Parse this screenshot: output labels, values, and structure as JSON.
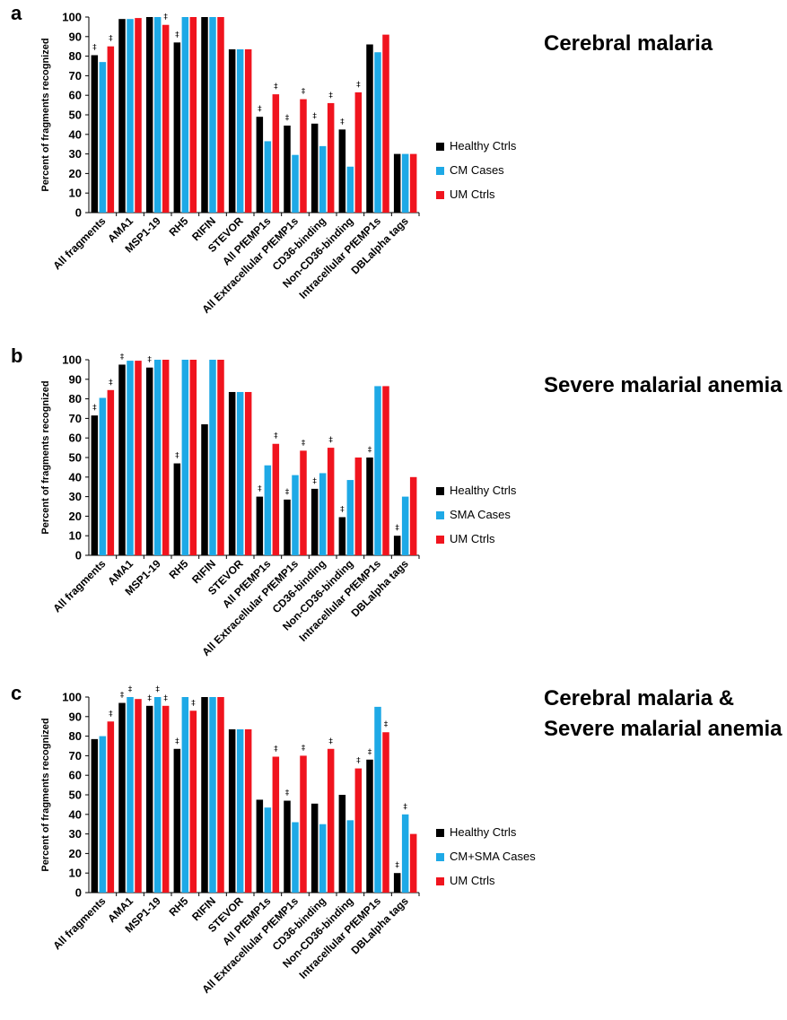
{
  "figure": {
    "colors": {
      "healthy": "#000000",
      "cases": "#1EA9E6",
      "um": "#F0141E",
      "axis": "#000000"
    },
    "categories": [
      "All fragments",
      "AMA1",
      "MSP1-19",
      "RH5",
      "RIFIN",
      "STEVOR",
      "All PfEMP1s",
      "All Extracellular PfEMP1s",
      "CD36-binding",
      "Non-CD36-binding",
      "Intracellular PfEMP1s",
      "DBLalpha tags"
    ],
    "ylabel": "Percent of fragments recognized",
    "significance_marker": "‡",
    "yticks": [
      "0",
      "10",
      "20",
      "30",
      "40",
      "50",
      "60",
      "70",
      "80",
      "90",
      "100"
    ]
  },
  "chart_data": [
    {
      "type": "bar",
      "panel": "a",
      "title": "Cerebral malaria",
      "ylabel": "Percent of fragments recognized",
      "ylim": [
        0,
        100
      ],
      "grid": false,
      "legend_position": "right",
      "categories": [
        "All fragments",
        "AMA1",
        "MSP1-19",
        "RH5",
        "RIFIN",
        "STEVOR",
        "All PfEMP1s",
        "All Extracellular PfEMP1s",
        "CD36-binding",
        "Non-CD36-binding",
        "Intracellular PfEMP1s",
        "DBLalpha tags"
      ],
      "series": [
        {
          "name": "Healthy Ctrls",
          "values": [
            80.5,
            99,
            100,
            87,
            100,
            83.5,
            49,
            44.5,
            45.5,
            42.5,
            86,
            30
          ],
          "marked": [
            1,
            0,
            0,
            1,
            0,
            0,
            1,
            1,
            1,
            1,
            0,
            0
          ]
        },
        {
          "name": "CM Cases",
          "values": [
            77,
            99,
            100,
            100,
            100,
            83.5,
            36.5,
            29.5,
            34,
            23.5,
            82,
            30
          ],
          "marked": [
            0,
            0,
            0,
            0,
            0,
            0,
            0,
            0,
            0,
            0,
            0,
            0
          ]
        },
        {
          "name": "UM Ctrls",
          "values": [
            85,
            99.5,
            96,
            100,
            100,
            83.5,
            60.5,
            58,
            56,
            61.5,
            91,
            30
          ],
          "marked": [
            1,
            0,
            1,
            0,
            0,
            0,
            1,
            1,
            1,
            1,
            0,
            0
          ]
        }
      ]
    },
    {
      "type": "bar",
      "panel": "b",
      "title": "Severe malarial anemia",
      "ylabel": "Percent of fragments recognized",
      "ylim": [
        0,
        100
      ],
      "grid": false,
      "legend_position": "right",
      "categories": [
        "All fragments",
        "AMA1",
        "MSP1-19",
        "RH5",
        "RIFIN",
        "STEVOR",
        "All PfEMP1s",
        "All Extracellular PfEMP1s",
        "CD36-binding",
        "Non-CD36-binding",
        "Intracellular PfEMP1s",
        "DBLalpha tags"
      ],
      "series": [
        {
          "name": "Healthy Ctrls",
          "values": [
            71.5,
            97.5,
            96,
            47,
            67,
            83.5,
            30,
            28.5,
            34,
            19.5,
            50,
            10
          ],
          "marked": [
            1,
            1,
            1,
            1,
            0,
            0,
            1,
            1,
            1,
            1,
            1,
            1
          ]
        },
        {
          "name": "SMA Cases",
          "values": [
            80.5,
            99.5,
            100,
            100,
            100,
            83.5,
            46,
            41,
            42,
            38.5,
            86.5,
            30
          ],
          "marked": [
            0,
            0,
            0,
            0,
            0,
            0,
            0,
            0,
            0,
            0,
            0,
            0
          ]
        },
        {
          "name": "UM Ctrls",
          "values": [
            84.5,
            99.5,
            100,
            100,
            100,
            83.5,
            57,
            53.5,
            55,
            50,
            86.5,
            40
          ],
          "marked": [
            1,
            0,
            0,
            0,
            0,
            0,
            1,
            1,
            1,
            0,
            0,
            0
          ]
        }
      ]
    },
    {
      "type": "bar",
      "panel": "c",
      "title": "Cerebral malaria & Severe malarial anemia",
      "title_lines": [
        "Cerebral malaria &",
        "Severe malarial anemia"
      ],
      "ylabel": "Percent of fragments recognized",
      "ylim": [
        0,
        100
      ],
      "grid": false,
      "legend_position": "right",
      "categories": [
        "All fragments",
        "AMA1",
        "MSP1-19",
        "RH5",
        "RIFIN",
        "STEVOR",
        "All PfEMP1s",
        "All Extracellular PfEMP1s",
        "CD36-binding",
        "Non-CD36-binding",
        "Intracellular PfEMP1s",
        "DBLalpha tags"
      ],
      "series": [
        {
          "name": "Healthy Ctrls",
          "values": [
            78.5,
            97,
            95.5,
            73.5,
            100,
            83.5,
            47.5,
            47,
            45.5,
            50,
            68,
            10
          ],
          "marked": [
            0,
            1,
            1,
            1,
            0,
            0,
            0,
            1,
            0,
            0,
            1,
            1
          ]
        },
        {
          "name": "CM+SMA Cases",
          "values": [
            80,
            100,
            100,
            100,
            100,
            83.5,
            43.5,
            36,
            35,
            37,
            95,
            40
          ],
          "marked": [
            0,
            1,
            1,
            0,
            0,
            0,
            0,
            0,
            0,
            0,
            0,
            1
          ]
        },
        {
          "name": "UM Ctrls",
          "values": [
            87.5,
            99,
            95.5,
            93,
            100,
            83.5,
            69.5,
            70,
            73.5,
            63.5,
            82,
            30
          ],
          "marked": [
            1,
            0,
            1,
            1,
            0,
            0,
            1,
            1,
            1,
            1,
            1,
            0
          ]
        }
      ]
    }
  ]
}
